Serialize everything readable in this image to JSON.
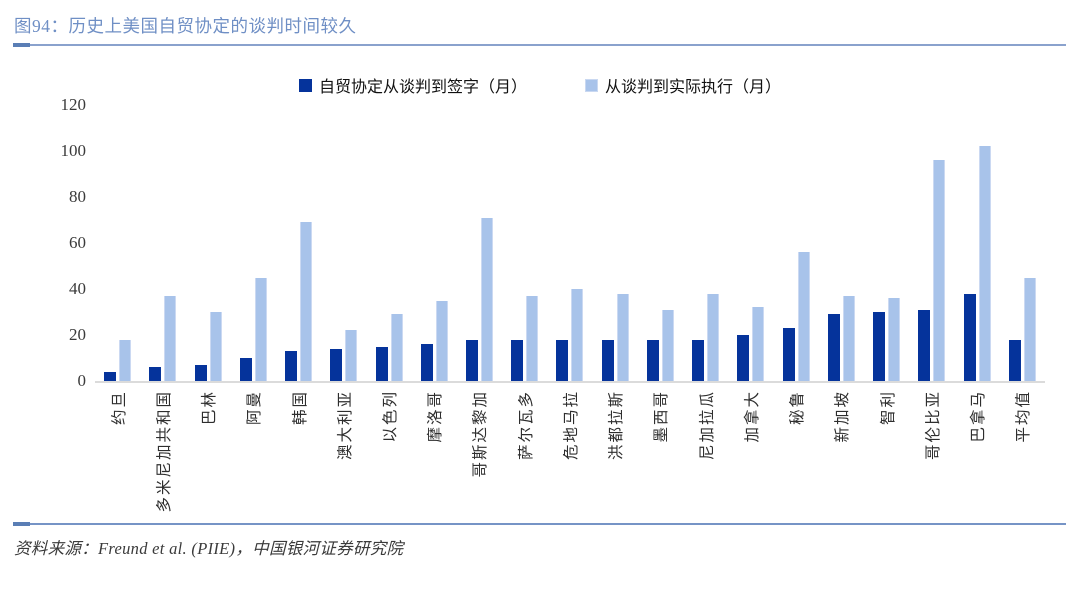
{
  "page": {
    "title": "图94：历史上美国自贸协定的谈判时间较久",
    "source": "资料来源：Freund et al. (PIIE)，中国银河证券研究院"
  },
  "colors": {
    "title_blue": "#6F8FC5",
    "divider_blue": "#8AA2CD",
    "divider_accent_blue": "#5A7EB5",
    "series_dark_blue": "#05339B",
    "series_light_blue": "#A8C3EA",
    "axis_baseline_gray": "#DBDBDB"
  },
  "chart_data": {
    "type": "bar",
    "title": "图94：历史上美国自贸协定的谈判时间较久",
    "categories": [
      "约旦",
      "多米尼加共和国",
      "巴林",
      "阿曼",
      "韩国",
      "澳大利亚",
      "以色列",
      "摩洛哥",
      "哥斯达黎加",
      "萨尔瓦多",
      "危地马拉",
      "洪都拉斯",
      "墨西哥",
      "尼加拉瓜",
      "加拿大",
      "秘鲁",
      "新加坡",
      "智利",
      "哥伦比亚",
      "巴拿马",
      "平均值"
    ],
    "series": [
      {
        "name": "自贸协定从谈判到签字（月）",
        "color": "#05339B",
        "values": [
          4,
          6,
          7,
          10,
          13,
          14,
          15,
          16,
          18,
          18,
          18,
          18,
          18,
          18,
          20,
          23,
          29,
          30,
          31,
          38,
          18
        ]
      },
      {
        "name": "从谈判到实际执行（月）",
        "color": "#A8C3EA",
        "values": [
          18,
          37,
          30,
          45,
          69,
          22,
          29,
          35,
          71,
          37,
          40,
          38,
          31,
          38,
          32,
          56,
          37,
          36,
          96,
          102,
          45
        ]
      }
    ],
    "xlabel": "",
    "ylabel": "",
    "ylim": [
      0,
      120
    ],
    "yticks": [
      0,
      20,
      40,
      60,
      80,
      100,
      120
    ],
    "grid": false,
    "legend_position": "top-center"
  }
}
